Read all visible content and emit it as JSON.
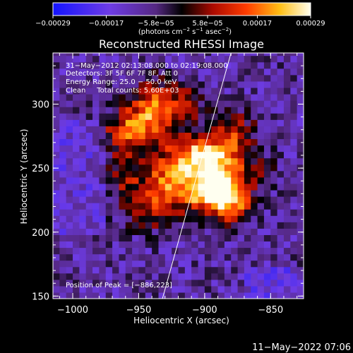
{
  "chart_data": {
    "type": "heatmap",
    "title": "Reconstructed RHESSI Image",
    "xlabel": "Heliocentric X (arcsec)",
    "ylabel": "Heliocentric Y (arcsec)",
    "xlim": [
      -1015,
      -825
    ],
    "ylim": [
      148,
      340
    ],
    "x_ticks": [
      -1000,
      -950,
      -900,
      -850
    ],
    "y_ticks": [
      150,
      200,
      250,
      300
    ],
    "x_tick_labels": [
      "−1000",
      "−950",
      "−900",
      "−850"
    ],
    "y_tick_labels": [
      "150",
      "200",
      "250",
      "300"
    ],
    "colorbar": {
      "range": [
        -0.00029,
        0.00029
      ],
      "ticks": [
        -0.00029,
        -0.00017,
        -5.8e-05,
        5.8e-05,
        0.00017,
        0.00029
      ],
      "tick_labels": [
        "−0.00029",
        "−0.00017",
        "−5.8e−05",
        "5.8e−05",
        "0.00017",
        "0.00029"
      ],
      "unit_label_main": "(photons cm",
      "unit_sup1": "−2",
      "unit_mid": " s",
      "unit_sup2": "−1",
      "unit_mid2": " asec",
      "unit_sup3": "−2",
      "unit_tail": ")"
    },
    "info_lines": [
      "31−May−2012 02:13:08.000 to 02:19:08.000",
      "Detectors: 3F 5F 6F 7F 8F, Att 0",
      "Energy Range: 25.0 − 50.0 keV",
      "Clean     Total counts: 5.60E+03"
    ],
    "peak_label": "Position of Peak = [−886,223]",
    "peak_position": [
      -886,
      223
    ],
    "limb_line": [
      [
        -932,
        148
      ],
      [
        -880,
        340
      ]
    ],
    "blobs": [
      {
        "x": -940,
        "y": 295,
        "amp": 0.00026,
        "sx": 12,
        "sy": 16
      },
      {
        "x": -960,
        "y": 278,
        "amp": 0.00022,
        "sx": 11,
        "sy": 12
      },
      {
        "x": -908,
        "y": 262,
        "amp": 0.00024,
        "sx": 14,
        "sy": 10
      },
      {
        "x": -890,
        "y": 250,
        "amp": 0.00025,
        "sx": 12,
        "sy": 14
      },
      {
        "x": -925,
        "y": 245,
        "amp": 0.00023,
        "sx": 14,
        "sy": 12
      },
      {
        "x": -882,
        "y": 225,
        "amp": 0.00029,
        "sx": 12,
        "sy": 12
      },
      {
        "x": -900,
        "y": 232,
        "amp": 0.00026,
        "sx": 14,
        "sy": 10
      },
      {
        "x": -938,
        "y": 220,
        "amp": 0.00018,
        "sx": 16,
        "sy": 12
      },
      {
        "x": -878,
        "y": 278,
        "amp": 0.00017,
        "sx": 12,
        "sy": 12
      },
      {
        "x": -960,
        "y": 245,
        "amp": 0.00013,
        "sx": 10,
        "sy": 12
      },
      {
        "x": -915,
        "y": 300,
        "amp": 0.00013,
        "sx": 10,
        "sy": 12
      },
      {
        "x": -862,
        "y": 250,
        "amp": 0.0001,
        "sx": 10,
        "sy": 10
      }
    ],
    "background_level": -9e-05,
    "noise_amplitude": 7e-05,
    "grid": false
  },
  "footer": {
    "timestamp": "11−May−2022 07:06"
  }
}
